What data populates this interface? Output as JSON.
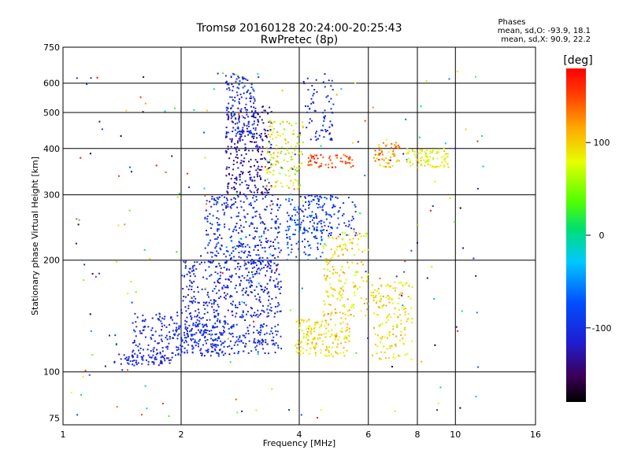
{
  "chart_data": {
    "type": "scatter",
    "title": "Tromsø 20160128 20:24:00-20:25:43",
    "subtitle": "RwPretec (8p)",
    "xlabel": "Frequency [MHz]",
    "ylabel": "Stationary phase Virtual Height [km]",
    "x_scale": "log",
    "y_scale": "log",
    "xlim": [
      1,
      16
    ],
    "ylim": [
      72,
      750
    ],
    "x_ticks": [
      "1",
      "2",
      "4",
      "6",
      "8",
      "10",
      "16"
    ],
    "y_ticks": [
      "75",
      "100",
      "200",
      "300",
      "400",
      "500",
      "600",
      "750"
    ],
    "grid": true,
    "phase_stats": {
      "heading": "Phases",
      "o_line": "mean, sd,O: -93.9, 18.1",
      "x_line": "mean, sd,X:  90.9, 22.2"
    },
    "colorbar": {
      "label": "[deg]",
      "range": [
        -180,
        180
      ],
      "ticks": [
        "100",
        "0",
        "-100"
      ],
      "colormap": "rainbow"
    },
    "clusters": [
      {
        "fmin": 1.35,
        "fmax": 1.9,
        "hmin": 104,
        "hmax": 112,
        "pmin": -125,
        "pmax": -100,
        "n": 70
      },
      {
        "fmin": 1.5,
        "fmax": 2.6,
        "hmin": 110,
        "hmax": 145,
        "pmin": -120,
        "pmax": -95,
        "n": 220
      },
      {
        "fmin": 1.9,
        "fmax": 3.6,
        "hmin": 112,
        "hmax": 135,
        "pmin": -115,
        "pmax": -90,
        "n": 230
      },
      {
        "fmin": 2.0,
        "fmax": 3.6,
        "hmin": 140,
        "hmax": 200,
        "pmin": -125,
        "pmax": -90,
        "n": 360
      },
      {
        "fmin": 2.3,
        "fmax": 3.6,
        "hmin": 195,
        "hmax": 300,
        "pmin": -125,
        "pmax": -85,
        "n": 300
      },
      {
        "fmin": 2.6,
        "fmax": 3.4,
        "hmin": 300,
        "hmax": 520,
        "pmin": -150,
        "pmax": -110,
        "n": 260
      },
      {
        "fmin": 2.6,
        "fmax": 3.1,
        "hmin": 430,
        "hmax": 640,
        "pmin": -130,
        "pmax": -80,
        "n": 140
      },
      {
        "fmin": 3.3,
        "fmax": 4.1,
        "hmin": 310,
        "hmax": 480,
        "pmin": 40,
        "pmax": 120,
        "n": 130
      },
      {
        "fmin": 3.7,
        "fmax": 4.6,
        "hmin": 200,
        "hmax": 300,
        "pmin": -110,
        "pmax": -60,
        "n": 120
      },
      {
        "fmin": 4.0,
        "fmax": 5.6,
        "hmin": 230,
        "hmax": 300,
        "pmin": -115,
        "pmax": -80,
        "n": 110
      },
      {
        "fmin": 4.2,
        "fmax": 5.5,
        "hmin": 355,
        "hmax": 385,
        "pmin": 130,
        "pmax": 170,
        "n": 60
      },
      {
        "fmin": 4.1,
        "fmax": 4.9,
        "hmin": 420,
        "hmax": 620,
        "pmin": -120,
        "pmax": -90,
        "n": 70
      },
      {
        "fmin": 3.9,
        "fmax": 5.4,
        "hmin": 110,
        "hmax": 140,
        "pmin": 70,
        "pmax": 120,
        "n": 160
      },
      {
        "fmin": 4.6,
        "fmax": 6.0,
        "hmin": 140,
        "hmax": 240,
        "pmin": 60,
        "pmax": 130,
        "n": 170
      },
      {
        "fmin": 6.1,
        "fmax": 7.8,
        "hmin": 108,
        "hmax": 175,
        "pmin": 60,
        "pmax": 120,
        "n": 150
      },
      {
        "fmin": 6.2,
        "fmax": 7.2,
        "hmin": 355,
        "hmax": 415,
        "pmin": 80,
        "pmax": 150,
        "n": 60
      },
      {
        "fmin": 7.5,
        "fmax": 9.6,
        "hmin": 355,
        "hmax": 400,
        "pmin": 60,
        "pmax": 110,
        "n": 90
      },
      {
        "fmin": 1.05,
        "fmax": 12.0,
        "hmin": 75,
        "hmax": 650,
        "pmin": -180,
        "pmax": 180,
        "n": 220
      }
    ]
  }
}
